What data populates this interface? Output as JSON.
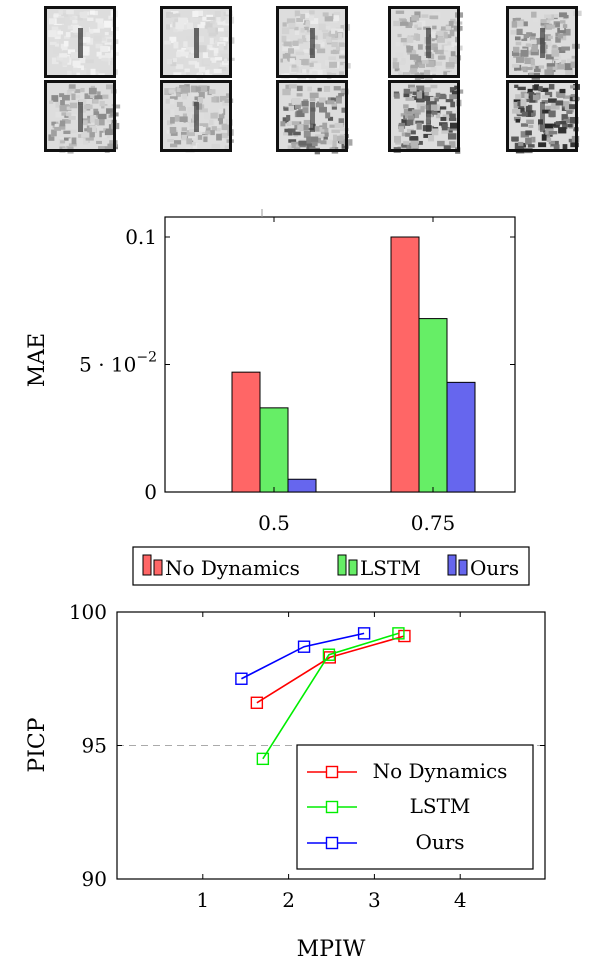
{
  "chart_data": [
    {
      "type": "bar",
      "categories": [
        "0.5",
        "0.75"
      ],
      "series": [
        {
          "name": "No Dynamics",
          "values": [
            0.047,
            0.1
          ],
          "color": "#ff6666"
        },
        {
          "name": "LSTM",
          "values": [
            0.033,
            0.068
          ],
          "color": "#66ee66"
        },
        {
          "name": "Ours",
          "values": [
            0.005,
            0.043
          ],
          "color": "#6666ee"
        }
      ],
      "ylabel": "MAE",
      "ylim": [
        0,
        0.1
      ],
      "yticks": [
        {
          "value": 0,
          "label": "0"
        },
        {
          "value": 0.05,
          "label": "5 · 10",
          "sup": "−2"
        },
        {
          "value": 0.1,
          "label": "0.1"
        }
      ],
      "legend": "bottom"
    },
    {
      "type": "line",
      "xlabel": "MPIW",
      "ylabel": "PICP",
      "xlim": [
        0,
        5
      ],
      "ylim": [
        90,
        100
      ],
      "xticks": [
        "1",
        "2",
        "3",
        "4"
      ],
      "yticks": [
        "90",
        "95",
        "100"
      ],
      "reference_line": 95,
      "series": [
        {
          "name": "No Dynamics",
          "color": "#ff0000",
          "points": [
            [
              1.63,
              96.6
            ],
            [
              2.48,
              98.3
            ],
            [
              3.35,
              99.1
            ]
          ]
        },
        {
          "name": "LSTM",
          "color": "#00ee00",
          "points": [
            [
              1.7,
              94.5
            ],
            [
              2.47,
              98.4
            ],
            [
              3.28,
              99.2
            ]
          ]
        },
        {
          "name": "Ours",
          "color": "#0000ff",
          "points": [
            [
              1.45,
              97.5
            ],
            [
              2.18,
              98.7
            ],
            [
              2.88,
              99.2
            ]
          ]
        }
      ],
      "legend": "bottom-right"
    }
  ]
}
